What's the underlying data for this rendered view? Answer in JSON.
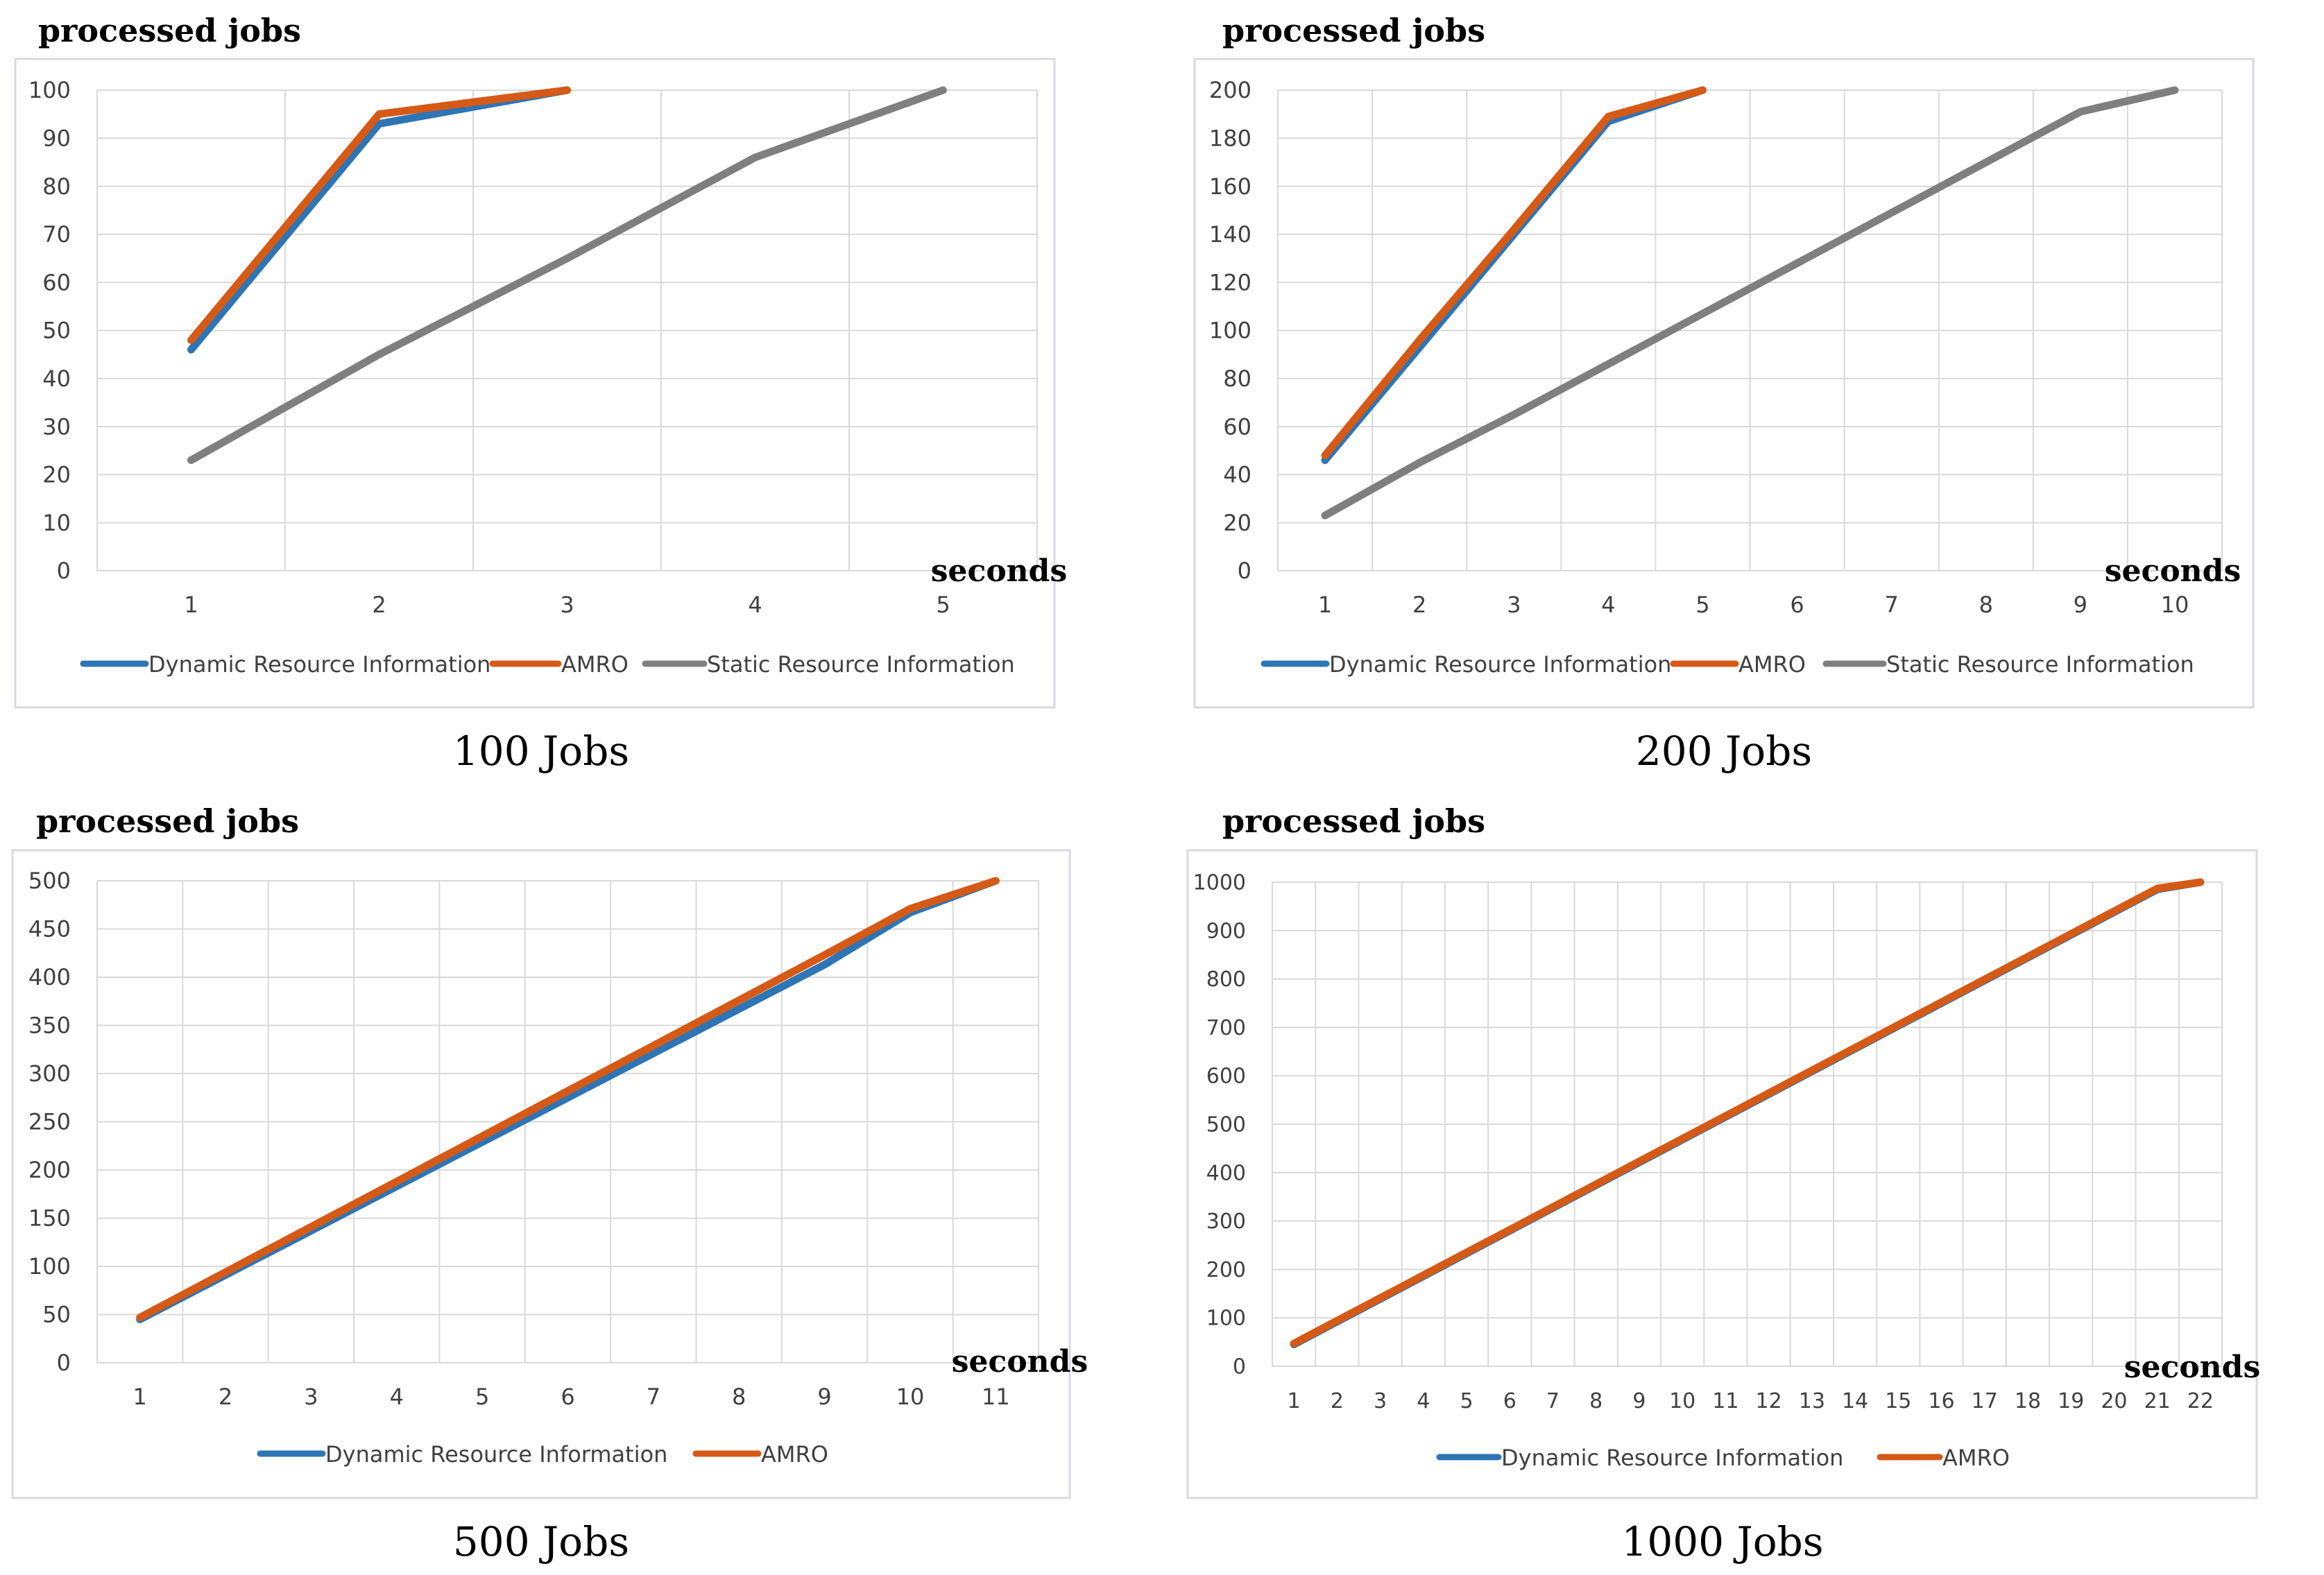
{
  "chart_data": [
    {
      "type": "line",
      "title": "100 Jobs",
      "ylabel": "processed jobs",
      "xlabel": "seconds",
      "categories": [
        "1",
        "2",
        "3",
        "4",
        "5"
      ],
      "ylim": [
        0,
        100
      ],
      "yticks": [
        0,
        10,
        20,
        30,
        40,
        50,
        60,
        70,
        80,
        90,
        100
      ],
      "grid": true,
      "legend": "bottom",
      "series": [
        {
          "name": "Dynamic Resource Information",
          "color": "#2e75b6",
          "values": [
            46,
            93,
            100,
            null,
            null
          ]
        },
        {
          "name": "AMRO",
          "color": "#d55a16",
          "values": [
            48,
            95,
            100,
            null,
            null
          ]
        },
        {
          "name": "Static Resource  Information",
          "color": "#7f7f7f",
          "values": [
            23,
            45,
            65,
            86,
            100
          ]
        }
      ]
    },
    {
      "type": "line",
      "title": "200 Jobs",
      "ylabel": "processed jobs",
      "xlabel": "seconds",
      "categories": [
        "1",
        "2",
        "3",
        "4",
        "5",
        "6",
        "7",
        "8",
        "9",
        "10"
      ],
      "ylim": [
        0,
        200
      ],
      "yticks": [
        0,
        20,
        40,
        60,
        80,
        100,
        120,
        140,
        160,
        180,
        200
      ],
      "grid": true,
      "legend": "bottom",
      "series": [
        {
          "name": "Dynamic Resource Information",
          "color": "#2e75b6",
          "values": [
            46,
            93,
            140,
            187,
            200,
            null,
            null,
            null,
            null,
            null
          ]
        },
        {
          "name": "AMRO",
          "color": "#d55a16",
          "values": [
            48,
            96,
            142,
            189,
            200,
            null,
            null,
            null,
            null,
            null
          ]
        },
        {
          "name": "Static Resource  Information",
          "color": "#7f7f7f",
          "values": [
            23,
            45,
            65,
            86,
            107,
            128,
            149,
            170,
            191,
            200
          ]
        }
      ]
    },
    {
      "type": "line",
      "title": "500 Jobs",
      "ylabel": "processed jobs",
      "xlabel": "seconds",
      "categories": [
        "1",
        "2",
        "3",
        "4",
        "5",
        "6",
        "7",
        "8",
        "9",
        "10",
        "11"
      ],
      "ylim": [
        0,
        500
      ],
      "yticks": [
        0,
        50,
        100,
        150,
        200,
        250,
        300,
        350,
        400,
        450,
        500
      ],
      "grid": true,
      "legend": "bottom",
      "series": [
        {
          "name": "Dynamic Resource Information",
          "color": "#2e75b6",
          "values": [
            45,
            91,
            137,
            183,
            229,
            275,
            321,
            367,
            413,
            467,
            500
          ]
        },
        {
          "name": "AMRO",
          "color": "#d55a16",
          "values": [
            47,
            94,
            141,
            188,
            235,
            282,
            329,
            376,
            423,
            471,
            500
          ]
        }
      ]
    },
    {
      "type": "line",
      "title": "1000 Jobs",
      "ylabel": "processed jobs",
      "xlabel": "seconds",
      "categories": [
        "1",
        "2",
        "3",
        "4",
        "5",
        "6",
        "7",
        "8",
        "9",
        "10",
        "11",
        "12",
        "13",
        "14",
        "15",
        "16",
        "17",
        "18",
        "19",
        "20",
        "21",
        "22"
      ],
      "ylim": [
        0,
        1000
      ],
      "yticks": [
        0,
        100,
        200,
        300,
        400,
        500,
        600,
        700,
        800,
        900,
        1000
      ],
      "grid": true,
      "legend": "bottom",
      "series": [
        {
          "name": "Dynamic Resource Information",
          "color": "#2e75b6",
          "values": [
            45,
            92,
            139,
            186,
            233,
            280,
            327,
            374,
            421,
            468,
            515,
            562,
            609,
            656,
            703,
            750,
            797,
            844,
            891,
            938,
            985,
            1000
          ]
        },
        {
          "name": "AMRO",
          "color": "#d55a16",
          "values": [
            47,
            94,
            141,
            188,
            235,
            282,
            329,
            376,
            423,
            470,
            517,
            564,
            611,
            658,
            705,
            752,
            799,
            846,
            893,
            940,
            987,
            1000
          ]
        }
      ]
    }
  ]
}
